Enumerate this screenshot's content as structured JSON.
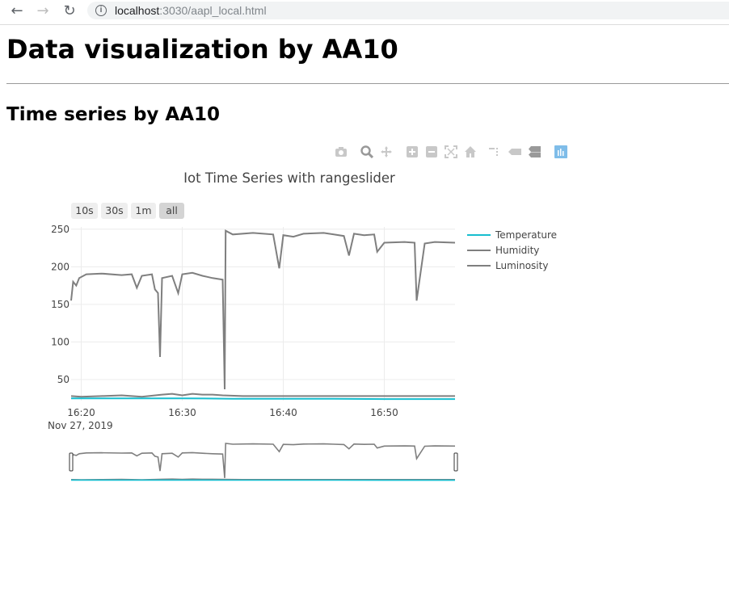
{
  "browser": {
    "back_icon": "arrow-left-icon",
    "forward_icon": "arrow-right-icon",
    "reload_icon": "reload-icon",
    "url_host": "localhost",
    "url_path": ":3030/aapl_local.html"
  },
  "page": {
    "title": "Data visualization by AA10",
    "subtitle": "Time series by AA10"
  },
  "modebar": [
    "camera-icon",
    "zoom-icon",
    "pan-icon",
    "zoom-in-icon",
    "zoom-out-icon",
    "autoscale-icon",
    "reset-axes-icon",
    "spike-lines-icon",
    "hover-closest-icon",
    "hover-compare-icon",
    "plotly-logo-icon"
  ],
  "range_selector": [
    {
      "label": "10s",
      "active": false
    },
    {
      "label": "30s",
      "active": false
    },
    {
      "label": "1m",
      "active": false
    },
    {
      "label": "all",
      "active": true
    }
  ],
  "chart_data": {
    "type": "line",
    "title": "Iot Time Series with rangeslider",
    "x_range": [
      "2019-11-27 16:19",
      "2019-11-27 16:57"
    ],
    "x_ticks": [
      "16:20",
      "16:30",
      "16:40",
      "16:50"
    ],
    "x_date_label": "Nov 27, 2019",
    "ylim": [
      22,
      253
    ],
    "y_ticks": [
      50,
      100,
      150,
      200,
      250
    ],
    "grid": true,
    "legend_placement": "top-right",
    "rangeslider": true,
    "series": [
      {
        "name": "Temperature",
        "color": "#17becf",
        "points": [
          [
            "16:19",
            25
          ],
          [
            "16:25",
            25
          ],
          [
            "16:30",
            25
          ],
          [
            "16:35",
            24.5
          ],
          [
            "16:40",
            24.5
          ],
          [
            "16:45",
            24.5
          ],
          [
            "16:50",
            24
          ],
          [
            "16:57",
            24
          ]
        ]
      },
      {
        "name": "Humidity",
        "color": "#7f7f7f",
        "points": [
          [
            "16:19",
            28
          ],
          [
            "16:20",
            27
          ],
          [
            "16:22",
            28
          ],
          [
            "16:24",
            29
          ],
          [
            "16:26",
            27
          ],
          [
            "16:28",
            30
          ],
          [
            "16:29",
            31
          ],
          [
            "16:30",
            29
          ],
          [
            "16:31",
            31
          ],
          [
            "16:32",
            30
          ],
          [
            "16:33",
            30
          ],
          [
            "16:34",
            29
          ],
          [
            "16:36",
            28
          ],
          [
            "16:40",
            28
          ],
          [
            "16:45",
            28
          ],
          [
            "16:50",
            28
          ],
          [
            "16:57",
            28
          ]
        ]
      },
      {
        "name": "Luminosity",
        "color": "#7f7f7f",
        "points": [
          [
            "16:19",
            155
          ],
          [
            "16:19.2",
            180
          ],
          [
            "16:19.5",
            175
          ],
          [
            "16:19.8",
            185
          ],
          [
            "16:20.5",
            190
          ],
          [
            "16:22",
            191
          ],
          [
            "16:24",
            189
          ],
          [
            "16:25",
            190
          ],
          [
            "16:25.5",
            172
          ],
          [
            "16:26",
            188
          ],
          [
            "16:27",
            190
          ],
          [
            "16:27.3",
            170
          ],
          [
            "16:27.6",
            165
          ],
          [
            "16:27.8",
            80
          ],
          [
            "16:28",
            185
          ],
          [
            "16:29",
            188
          ],
          [
            "16:29.6",
            165
          ],
          [
            "16:30",
            190
          ],
          [
            "16:31",
            192
          ],
          [
            "16:32",
            188
          ],
          [
            "16:33",
            185
          ],
          [
            "16:34",
            183
          ],
          [
            "16:34.2",
            37
          ],
          [
            "16:34.3",
            248
          ],
          [
            "16:35",
            243
          ],
          [
            "16:37",
            245
          ],
          [
            "16:39",
            243
          ],
          [
            "16:39.6",
            198
          ],
          [
            "16:40",
            242
          ],
          [
            "16:41",
            240
          ],
          [
            "16:42",
            244
          ],
          [
            "16:44",
            245
          ],
          [
            "16:45",
            243
          ],
          [
            "16:46",
            241
          ],
          [
            "16:46.5",
            215
          ],
          [
            "16:47",
            244
          ],
          [
            "16:48",
            242
          ],
          [
            "16:49",
            243
          ],
          [
            "16:49.3",
            220
          ],
          [
            "16:50",
            232
          ],
          [
            "16:52",
            233
          ],
          [
            "16:53",
            232
          ],
          [
            "16:53.2",
            155
          ],
          [
            "16:54",
            231
          ],
          [
            "16:55",
            233
          ],
          [
            "16:57",
            232
          ]
        ]
      }
    ]
  }
}
